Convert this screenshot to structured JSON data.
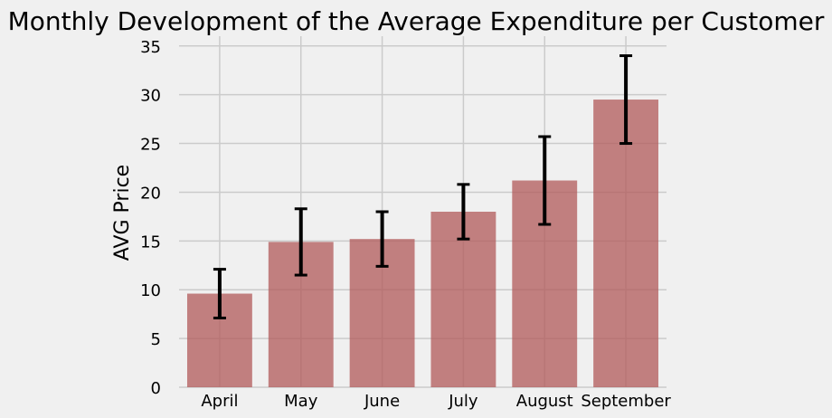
{
  "chart_data": {
    "type": "bar",
    "title": "Monthly Development of the Average Expenditure per Customer",
    "xlabel": "",
    "ylabel": "AVG Price",
    "categories": [
      "April",
      "May",
      "June",
      "July",
      "August",
      "September"
    ],
    "values": [
      9.6,
      14.9,
      15.2,
      18.0,
      21.2,
      29.5
    ],
    "error": [
      2.5,
      3.4,
      2.8,
      2.8,
      4.5,
      4.5
    ],
    "ylim": [
      0,
      36
    ],
    "yticks": [
      0,
      5,
      10,
      15,
      20,
      25,
      30,
      35
    ],
    "grid": true,
    "legend": "none",
    "colors": {
      "background": "#f0f0f0",
      "grid": "#cbcbcb",
      "bar": "#b25a5a",
      "error_bar": "#000000"
    }
  }
}
